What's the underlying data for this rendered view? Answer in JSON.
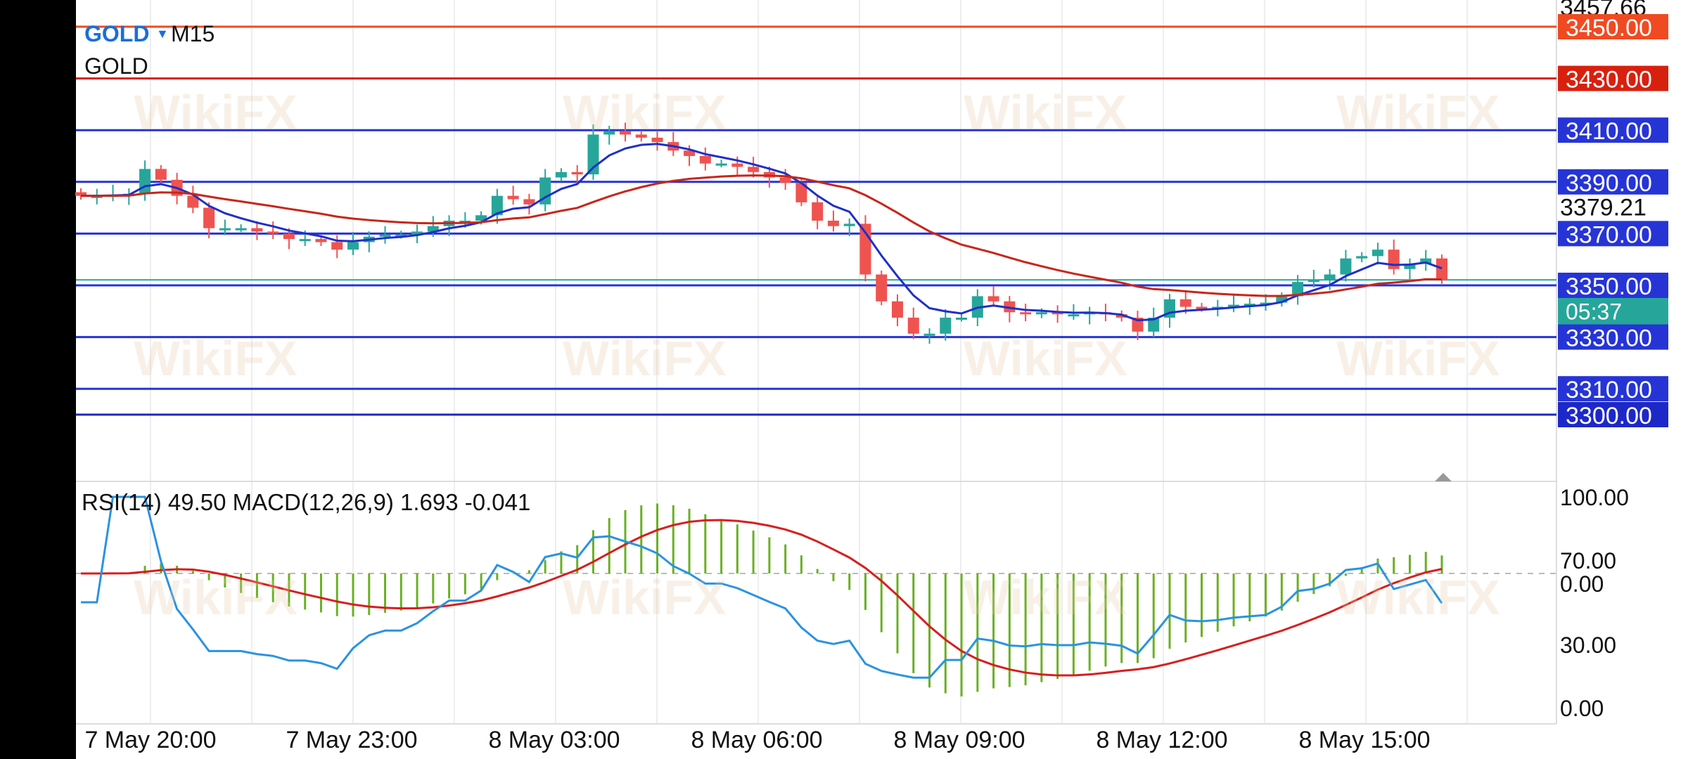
{
  "header": {
    "symbol": "GOLD",
    "timeframe": "M15",
    "instrument_label": "GOLD",
    "dropdown_icon": "triangle-down-icon"
  },
  "indicator_label": "RSI(14) 49.50 MACD(12,26,9) 1.693 -0.041",
  "watermark": "WikiFX",
  "colors": {
    "bull": "#26a69a",
    "bear": "#ef5350",
    "ma_fast": "#1f2fc8",
    "ma_slow": "#c8261a",
    "rsi": "#2a93e0",
    "macd_hist": "#6ab023",
    "signal": "#d81e1e",
    "level_blue": "#2634d6",
    "level_red": "#e0401f",
    "current_price": "#26a69a"
  },
  "chart_data": [
    {
      "type": "candlestick",
      "timeframe": "M15",
      "x_tick_labels": [
        "7 May 20:00",
        "7 May 23:00",
        "8 May 03:00",
        "8 May 06:00",
        "8 May 09:00",
        "8 May 12:00",
        "8 May 15:00"
      ],
      "close": [
        3384.6,
        3384.6,
        3385,
        3385.4,
        3395,
        3390.8,
        3384.6,
        3380,
        3372.1,
        3372.1,
        3372.1,
        3370.8,
        3370,
        3367.9,
        3367.9,
        3366.7,
        3363.8,
        3366.7,
        3368.8,
        3369.6,
        3369.6,
        3370.8,
        3372.9,
        3375,
        3375,
        3377.1,
        3384.6,
        3383.3,
        3381.3,
        3391.7,
        3393.8,
        3392.9,
        3408.3,
        3409.6,
        3408.3,
        3407.1,
        3405.4,
        3402.1,
        3400,
        3397.1,
        3397.1,
        3395.8,
        3393.8,
        3391.7,
        3389.6,
        3382.1,
        3375,
        3372.9,
        3373.8,
        3354.2,
        3343.8,
        3337.5,
        3331.3,
        3331.3,
        3337.5,
        3337.5,
        3345.8,
        3343.8,
        3339.6,
        3338.8,
        3339.6,
        3338.8,
        3338.8,
        3339.6,
        3338.8,
        3337.5,
        3332.1,
        3337.5,
        3344.6,
        3341.7,
        3341.3,
        3341.7,
        3342.5,
        3342.9,
        3343.3,
        3345.8,
        3351.3,
        3352.1,
        3354.2,
        3360.4,
        3361.3,
        3363.8,
        3356.3,
        3358.3,
        3360.4,
        3352.1
      ],
      "first_open": 3386,
      "ylim": [
        3290,
        3460
      ],
      "price_axis_labels": [
        "3457.66",
        "3379.21"
      ],
      "levels": [
        {
          "price": 3450,
          "label": "3450.00",
          "color": "#f04a22"
        },
        {
          "price": 3430,
          "label": "3430.00",
          "color": "#d8200e"
        },
        {
          "price": 3410,
          "label": "3410.00",
          "color": "#2634d6"
        },
        {
          "price": 3390,
          "label": "3390.00",
          "color": "#2634d6"
        },
        {
          "price": 3370,
          "label": "3370.00",
          "color": "#2634d6"
        },
        {
          "price": 3350,
          "label": "3350.00",
          "color": "#2634d6"
        },
        {
          "price": 3330,
          "label": "3330.00",
          "color": "#2634d6"
        },
        {
          "price": 3310,
          "label": "3310.00",
          "color": "#2634d6"
        },
        {
          "price": 3300,
          "label": "3300.00",
          "color": "#1d28c8"
        }
      ],
      "current_price": 3352.1,
      "countdown": "05:37",
      "grid": true
    },
    {
      "type": "indicator",
      "series": [
        "RSI(14)",
        "MACD(12,26,9)"
      ],
      "rsi_axis_labels": [
        "100.00",
        "70.00",
        "30.00",
        "0.00"
      ],
      "macd_zero_label": "0.00",
      "rsi_value": 49.5,
      "macd_value": 1.693,
      "signal_value": -0.041
    }
  ]
}
